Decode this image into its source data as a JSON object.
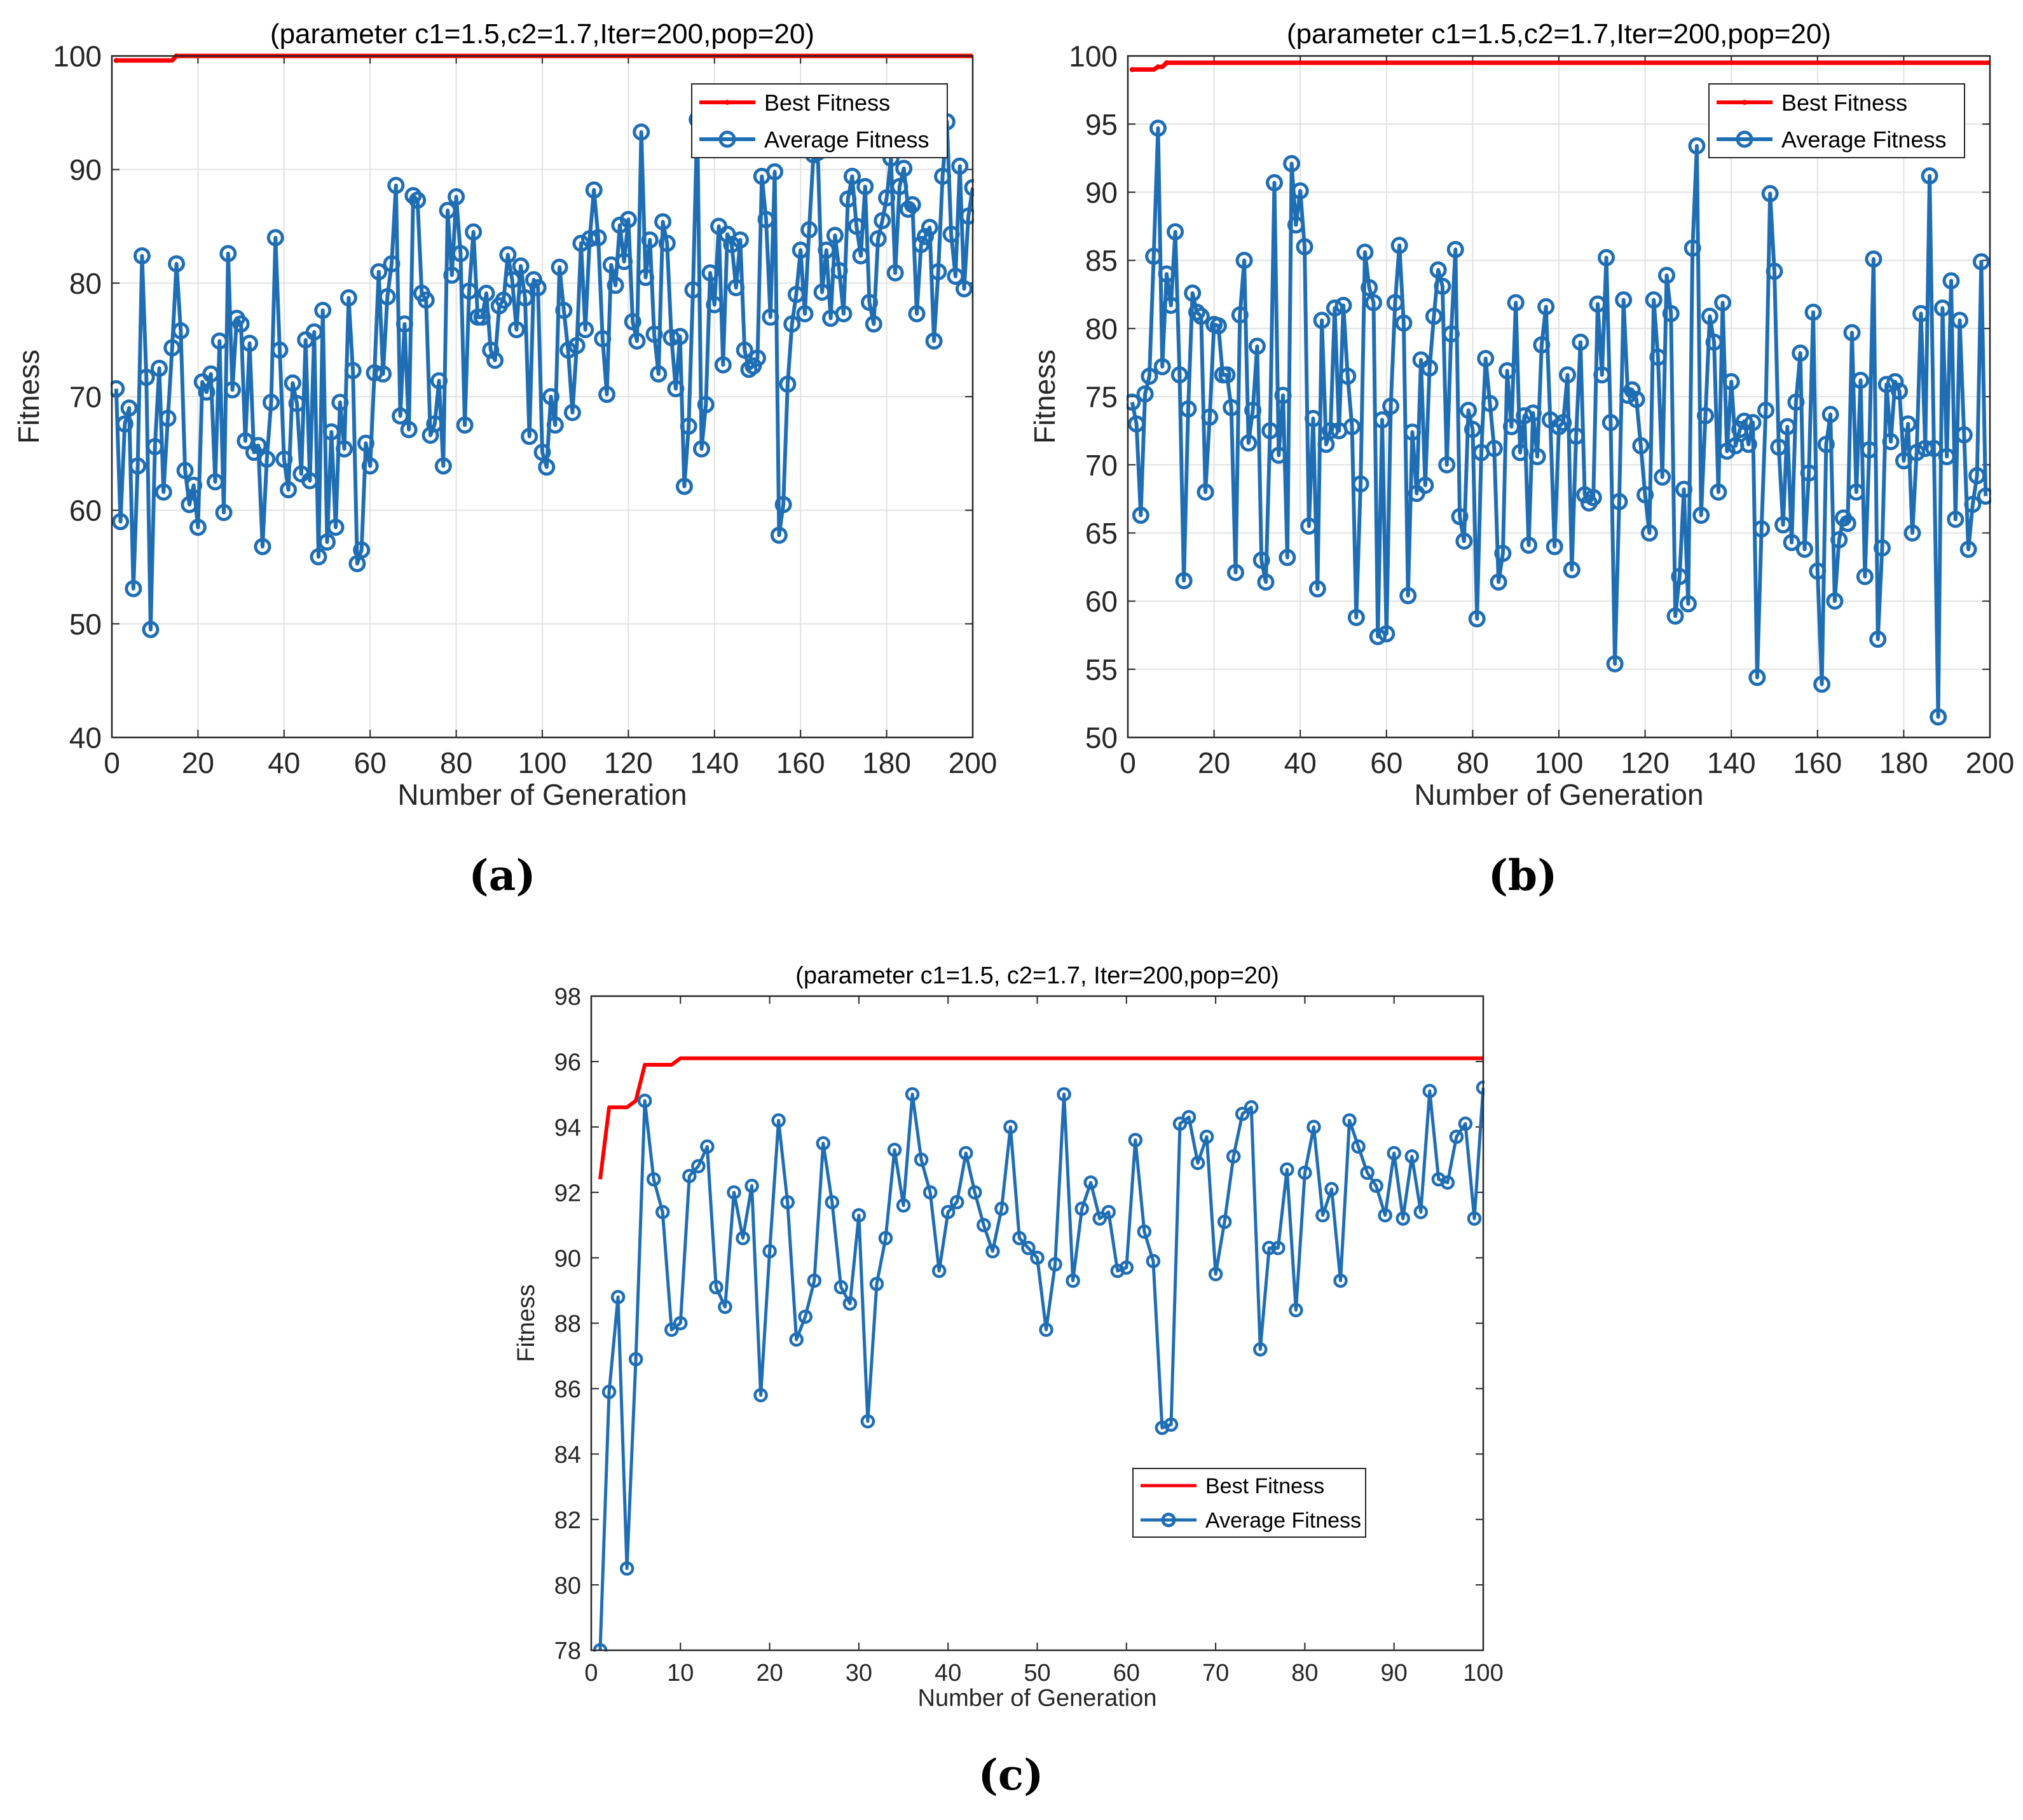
{
  "chart_data": [
    {
      "id": "a",
      "type": "line",
      "panel_label": "(a)",
      "title": "(parameter c1=1.5,c2=1.7,Iter=200,pop=20)",
      "xlabel": "Number of Generation",
      "ylabel": "Fitness",
      "xlim": [
        0,
        200
      ],
      "ylim": [
        40,
        100
      ],
      "xticks": [
        0,
        20,
        40,
        60,
        80,
        100,
        120,
        140,
        160,
        180,
        200
      ],
      "yticks": [
        40,
        50,
        60,
        70,
        80,
        90,
        100
      ],
      "grid": true,
      "legend_position": "top-right",
      "series": [
        {
          "name": "Best Fitness",
          "color": "#ff0000",
          "marker": "small-dot",
          "x_start": 1,
          "x_end": 200,
          "steps": [
            {
              "x": 1,
              "y": 99.6
            },
            {
              "x": 15,
              "y": 100.0
            }
          ]
        },
        {
          "name": "Average Fitness",
          "color": "#1f6eb4",
          "marker": "circle",
          "x_start": 1,
          "values": [
            70.7,
            59.0,
            67.6,
            69.0,
            53.1,
            63.9,
            82.4,
            71.7,
            49.5,
            65.6,
            72.5,
            61.6,
            68.1,
            74.3,
            81.7,
            75.8,
            63.5,
            60.5,
            62.2,
            58.5,
            71.3,
            70.4,
            72.0,
            62.5,
            74.9,
            59.8,
            82.6,
            70.6,
            76.9,
            76.4,
            66.1,
            74.7,
            65.1,
            65.7,
            56.8,
            64.5,
            69.5,
            84.0,
            74.1,
            64.5,
            61.8,
            71.2,
            69.4,
            63.2,
            75.0,
            62.6,
            75.7,
            55.9,
            77.6,
            57.2,
            66.9,
            58.5,
            69.5,
            65.4,
            78.7,
            72.3,
            55.3,
            56.5,
            65.9,
            63.9,
            72.1,
            81.0,
            72.0,
            78.8,
            81.7,
            88.6,
            68.3,
            76.4,
            67.1,
            87.7,
            87.3,
            79.1,
            78.5,
            66.6,
            67.6,
            71.4,
            63.9,
            86.4,
            80.7,
            87.6,
            82.6,
            67.5,
            79.3,
            84.5,
            77.0,
            77.0,
            79.1,
            74.1,
            73.2,
            78.0,
            78.5,
            82.5,
            80.3,
            75.9,
            81.5,
            78.7,
            66.5,
            80.3,
            79.6,
            65.1,
            63.8,
            70.0,
            67.5,
            81.4,
            77.6,
            74.1,
            68.6,
            74.5,
            83.5,
            75.9,
            83.9,
            88.2,
            84.0,
            75.1,
            70.2,
            81.6,
            79.8,
            85.1,
            81.9,
            85.6,
            76.6,
            74.9,
            93.3,
            80.5,
            83.8,
            75.5,
            72.0,
            85.4,
            83.5,
            75.2,
            70.7,
            75.3,
            62.1,
            67.4,
            79.4,
            94.4,
            65.4,
            69.3,
            80.9,
            78.1,
            85.0,
            72.8,
            84.3,
            83.4,
            79.6,
            83.8,
            74.1,
            72.4,
            72.7,
            73.4,
            89.4,
            85.6,
            77.0,
            89.8,
            57.8,
            60.5,
            71.1,
            76.4,
            79.0,
            82.9,
            77.3,
            84.7,
            91.3,
            91.5,
            79.2,
            82.9,
            76.9,
            84.2,
            81.1,
            77.3,
            87.4,
            89.4,
            85.0,
            82.4,
            88.5,
            78.3,
            76.4,
            83.9,
            85.5,
            87.5,
            91.0,
            80.9,
            88.5,
            90.1,
            86.5,
            86.9,
            77.3,
            83.4,
            84.1,
            84.9,
            74.9,
            81.0,
            89.4,
            94.2,
            84.3,
            80.6,
            90.3,
            79.5,
            85.9,
            88.4
          ]
        }
      ]
    },
    {
      "id": "b",
      "type": "line",
      "panel_label": "(b)",
      "title": "(parameter c1=1.5,c2=1.7,Iter=200,pop=20)",
      "xlabel": "Number of Generation",
      "ylabel": "Fitness",
      "xlim": [
        0,
        200
      ],
      "ylim": [
        50,
        100
      ],
      "xticks": [
        0,
        20,
        40,
        60,
        80,
        100,
        120,
        140,
        160,
        180,
        200
      ],
      "yticks": [
        50,
        55,
        60,
        65,
        70,
        75,
        80,
        85,
        90,
        95,
        100
      ],
      "grid": true,
      "legend_position": "top-right",
      "series": [
        {
          "name": "Best Fitness",
          "color": "#ff0000",
          "marker": "small-dot",
          "x_start": 1,
          "x_end": 200,
          "steps": [
            {
              "x": 1,
              "y": 99.0
            },
            {
              "x": 7,
              "y": 99.2
            },
            {
              "x": 9,
              "y": 99.5
            }
          ]
        },
        {
          "name": "Average Fitness",
          "color": "#1f6eb4",
          "marker": "circle",
          "x_start": 1,
          "values": [
            74.6,
            73.0,
            66.3,
            75.2,
            76.5,
            85.3,
            94.7,
            77.2,
            84.0,
            81.7,
            87.1,
            76.6,
            61.5,
            74.1,
            82.6,
            81.2,
            80.9,
            68.0,
            73.5,
            80.3,
            80.2,
            76.6,
            76.6,
            74.2,
            62.1,
            81.0,
            85.0,
            71.6,
            74.0,
            78.7,
            63.0,
            61.4,
            72.5,
            90.7,
            70.7,
            75.1,
            63.2,
            92.1,
            87.6,
            90.1,
            86.0,
            65.5,
            73.4,
            60.9,
            80.6,
            71.5,
            72.5,
            81.5,
            72.5,
            81.7,
            76.5,
            72.8,
            58.8,
            68.6,
            85.6,
            83.0,
            81.9,
            57.4,
            73.3,
            57.6,
            74.3,
            81.9,
            86.1,
            80.4,
            60.4,
            72.4,
            67.9,
            77.7,
            68.5,
            77.1,
            80.9,
            84.3,
            83.1,
            70.0,
            79.6,
            85.8,
            66.2,
            64.4,
            74.0,
            72.6,
            58.7,
            70.9,
            77.8,
            74.5,
            71.2,
            61.4,
            63.5,
            76.9,
            72.8,
            81.9,
            70.9,
            73.6,
            64.1,
            73.8,
            70.6,
            78.8,
            81.6,
            73.3,
            64.0,
            72.8,
            73.1,
            76.6,
            62.3,
            72.1,
            79.0,
            67.8,
            67.2,
            67.6,
            81.8,
            76.6,
            85.2,
            73.1,
            55.4,
            67.3,
            82.1,
            75.1,
            75.5,
            74.8,
            71.4,
            67.8,
            65.0,
            82.1,
            77.9,
            69.1,
            83.9,
            81.1,
            58.9,
            61.8,
            68.2,
            59.8,
            85.9,
            93.4,
            66.3,
            73.6,
            80.9,
            79.0,
            68.0,
            81.9,
            71.0,
            76.1,
            71.4,
            72.6,
            73.2,
            71.5,
            73.1,
            54.4,
            65.3,
            74.0,
            89.9,
            84.2,
            71.3,
            65.6,
            72.8,
            64.3,
            74.6,
            78.2,
            63.8,
            69.4,
            81.2,
            62.2,
            53.9,
            71.5,
            73.7,
            60.0,
            64.5,
            66.1,
            65.7,
            79.7,
            68.0,
            76.2,
            61.8,
            71.1,
            85.1,
            57.2,
            63.9,
            75.9,
            71.7,
            76.1,
            75.4,
            70.3,
            73.0,
            65.0,
            70.9,
            81.1,
            71.2,
            91.2,
            71.2,
            51.5,
            81.5,
            70.6,
            83.5,
            66.0,
            80.6,
            72.2,
            63.8,
            67.1,
            69.2,
            84.9,
            67.7
          ]
        }
      ]
    },
    {
      "id": "c",
      "type": "line",
      "panel_label": "(c)",
      "title": "(parameter c1=1.5, c2=1.7, Iter=200,pop=20)",
      "xlabel": "Number of Generation",
      "ylabel": "Fitness",
      "xlim": [
        0,
        100
      ],
      "ylim": [
        78,
        98
      ],
      "xticks": [
        0,
        10,
        20,
        30,
        40,
        50,
        60,
        70,
        80,
        90,
        100
      ],
      "yticks": [
        78,
        80,
        82,
        84,
        86,
        88,
        90,
        92,
        94,
        96,
        98
      ],
      "grid": false,
      "legend_position": "bottom-center",
      "series": [
        {
          "name": "Best Fitness",
          "color": "#ff0000",
          "marker": "none",
          "x_start": 1,
          "x_end": 100,
          "steps": [
            {
              "x": 1,
              "y": 92.4
            },
            {
              "x": 2,
              "y": 94.6
            },
            {
              "x": 5,
              "y": 94.8
            },
            {
              "x": 6,
              "y": 95.9
            },
            {
              "x": 9,
              "y": 95.9
            },
            {
              "x": 10,
              "y": 96.1
            }
          ]
        },
        {
          "name": "Average Fitness",
          "color": "#1f6eb4",
          "marker": "circle",
          "x_start": 1,
          "values": [
            78.0,
            85.9,
            88.8,
            80.5,
            86.9,
            94.8,
            92.4,
            91.4,
            87.8,
            88.0,
            92.5,
            92.8,
            93.4,
            89.1,
            88.5,
            92.0,
            90.6,
            92.2,
            85.8,
            90.2,
            94.2,
            91.7,
            87.5,
            88.2,
            89.3,
            93.5,
            91.7,
            89.1,
            88.6,
            91.3,
            85.0,
            89.2,
            90.6,
            93.3,
            91.6,
            95.0,
            93.0,
            92.0,
            89.6,
            91.4,
            91.7,
            93.2,
            92.0,
            91.0,
            90.2,
            91.5,
            94.0,
            90.6,
            90.3,
            90.0,
            87.8,
            89.8,
            95.0,
            89.3,
            91.5,
            92.3,
            91.2,
            91.4,
            89.6,
            89.7,
            93.6,
            90.8,
            89.9,
            84.8,
            84.9,
            94.1,
            94.3,
            92.9,
            93.7,
            89.5,
            91.1,
            93.1,
            94.4,
            94.6,
            87.2,
            90.3,
            90.3,
            92.7,
            88.4,
            92.6,
            94.0,
            91.3,
            92.1,
            89.3,
            94.2,
            93.4,
            92.6,
            92.2,
            91.3,
            93.2,
            91.2,
            93.1,
            91.4,
            95.1,
            92.4,
            92.3,
            93.7,
            94.1,
            91.2,
            95.2
          ]
        }
      ]
    }
  ]
}
